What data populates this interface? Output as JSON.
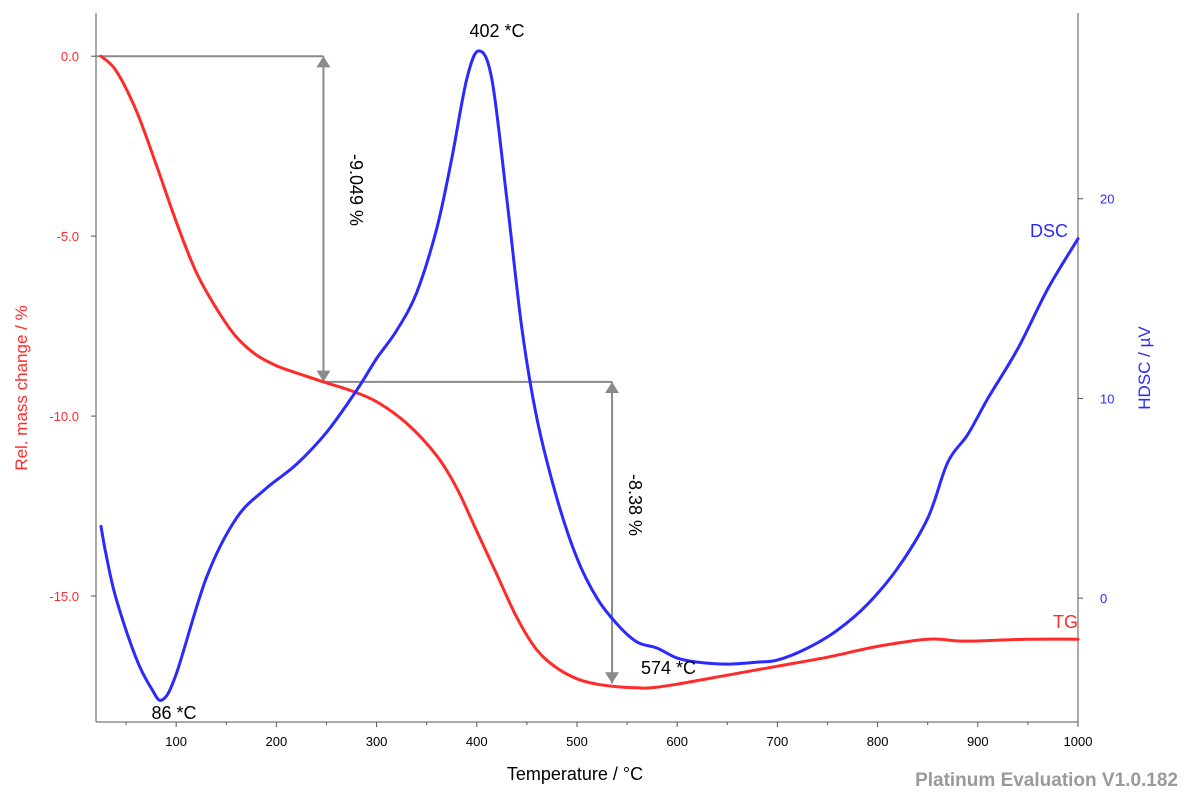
{
  "chart_data": {
    "type": "line",
    "xlabel": "Temperature / °C",
    "xlim": [
      20,
      1000
    ],
    "x_ticks": [
      "100",
      "200",
      "300",
      "400",
      "500",
      "600",
      "700",
      "800",
      "900",
      "1000"
    ],
    "y_left": {
      "label": "Rel. mass change / %",
      "range": [
        -18.5,
        1.2
      ],
      "ticks": [
        "0.0",
        "-5.0",
        "-10.0",
        "-15.0"
      ],
      "color": "#ff2a2a"
    },
    "y_right": {
      "label": "HDSC / µV",
      "range": [
        -6.2,
        29.3
      ],
      "ticks": [
        "20",
        "10",
        "0"
      ],
      "color": "#2a2aff"
    },
    "series": [
      {
        "name": "TG",
        "axis": "left",
        "color": "#ff2a2a",
        "x": [
          25,
          40,
          60,
          80,
          100,
          120,
          140,
          160,
          180,
          200,
          220,
          247,
          275,
          300,
          330,
          360,
          380,
          400,
          420,
          440,
          460,
          480,
          500,
          520,
          540,
          560,
          574,
          600,
          650,
          700,
          750,
          800,
          850,
          880,
          900,
          950,
          1000
        ],
        "y": [
          0.0,
          -0.4,
          -1.5,
          -3.0,
          -4.6,
          -6.0,
          -7.0,
          -7.8,
          -8.3,
          -8.6,
          -8.8,
          -9.05,
          -9.3,
          -9.6,
          -10.2,
          -11.1,
          -12.0,
          -13.2,
          -14.4,
          -15.6,
          -16.5,
          -17.0,
          -17.3,
          -17.45,
          -17.52,
          -17.55,
          -17.55,
          -17.45,
          -17.2,
          -16.95,
          -16.7,
          -16.4,
          -16.2,
          -16.25,
          -16.25,
          -16.2,
          -16.2
        ]
      },
      {
        "name": "DSC",
        "axis": "right",
        "color": "#2a2aff",
        "x": [
          25,
          30,
          40,
          60,
          75,
          86,
          100,
          130,
          160,
          190,
          220,
          250,
          280,
          300,
          320,
          340,
          360,
          375,
          390,
          402,
          415,
          430,
          445,
          460,
          480,
          500,
          520,
          540,
          560,
          580,
          600,
          620,
          650,
          680,
          700,
          730,
          760,
          790,
          820,
          850,
          870,
          890,
          910,
          940,
          970,
          1000
        ],
        "y": [
          3.6,
          2.2,
          0.0,
          -3.0,
          -4.5,
          -5.1,
          -3.8,
          1.0,
          4.0,
          5.5,
          6.7,
          8.3,
          10.4,
          12.0,
          13.4,
          15.3,
          18.5,
          22.0,
          26.0,
          27.4,
          26.0,
          20.0,
          13.5,
          9.0,
          5.0,
          2.0,
          0.0,
          -1.3,
          -2.2,
          -2.5,
          -3.0,
          -3.2,
          -3.3,
          -3.2,
          -3.1,
          -2.5,
          -1.6,
          -0.3,
          1.5,
          4.0,
          6.8,
          8.2,
          10.0,
          12.5,
          15.5,
          18.0
        ]
      }
    ],
    "annotations": {
      "step1": {
        "label": "-9.049 %",
        "x": 247,
        "y_top": 0.0,
        "y_bottom": -9.049
      },
      "step2": {
        "label": "-8.38 %",
        "x": 535,
        "y_top": -9.049,
        "y_bottom": -17.43
      },
      "peak_min_1": {
        "label": "86 *C",
        "x": 86,
        "y": -5.1
      },
      "peak_max": {
        "label": "402 *C",
        "x": 402,
        "y": 27.4
      },
      "tg_min": {
        "label": "574 *C",
        "x": 574,
        "y": -17.55
      }
    },
    "grid": false
  },
  "watermark": "Platinum Evaluation V1.0.182"
}
